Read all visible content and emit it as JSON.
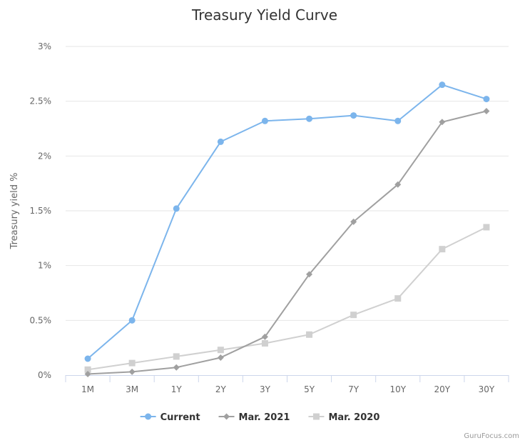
{
  "chart_data": {
    "type": "line",
    "title": "Treasury Yield Curve",
    "xlabel": "",
    "ylabel": "Treasury yield %",
    "categories": [
      "1M",
      "3M",
      "1Y",
      "2Y",
      "3Y",
      "5Y",
      "7Y",
      "10Y",
      "20Y",
      "30Y"
    ],
    "ylim": [
      0,
      3
    ],
    "yticks": [
      0,
      0.5,
      1,
      1.5,
      2,
      2.5,
      3
    ],
    "ytick_labels": [
      "0%",
      "0.5%",
      "1%",
      "1.5%",
      "2%",
      "2.5%",
      "3%"
    ],
    "grid": true,
    "legend_position": "bottom-center",
    "series": [
      {
        "name": "Current",
        "color": "#7cb5ec",
        "marker": "circle",
        "values": [
          0.15,
          0.5,
          1.52,
          2.13,
          2.32,
          2.34,
          2.37,
          2.32,
          2.65,
          2.52
        ]
      },
      {
        "name": "Mar. 2021",
        "color": "#a0a0a0",
        "marker": "diamond",
        "values": [
          0.01,
          0.03,
          0.07,
          0.16,
          0.35,
          0.92,
          1.4,
          1.74,
          2.31,
          2.41
        ]
      },
      {
        "name": "Mar. 2020",
        "color": "#d0d0d0",
        "marker": "square",
        "values": [
          0.05,
          0.11,
          0.17,
          0.23,
          0.29,
          0.37,
          0.55,
          0.7,
          1.15,
          1.35
        ]
      }
    ]
  },
  "credit": "GuruFocus.com"
}
